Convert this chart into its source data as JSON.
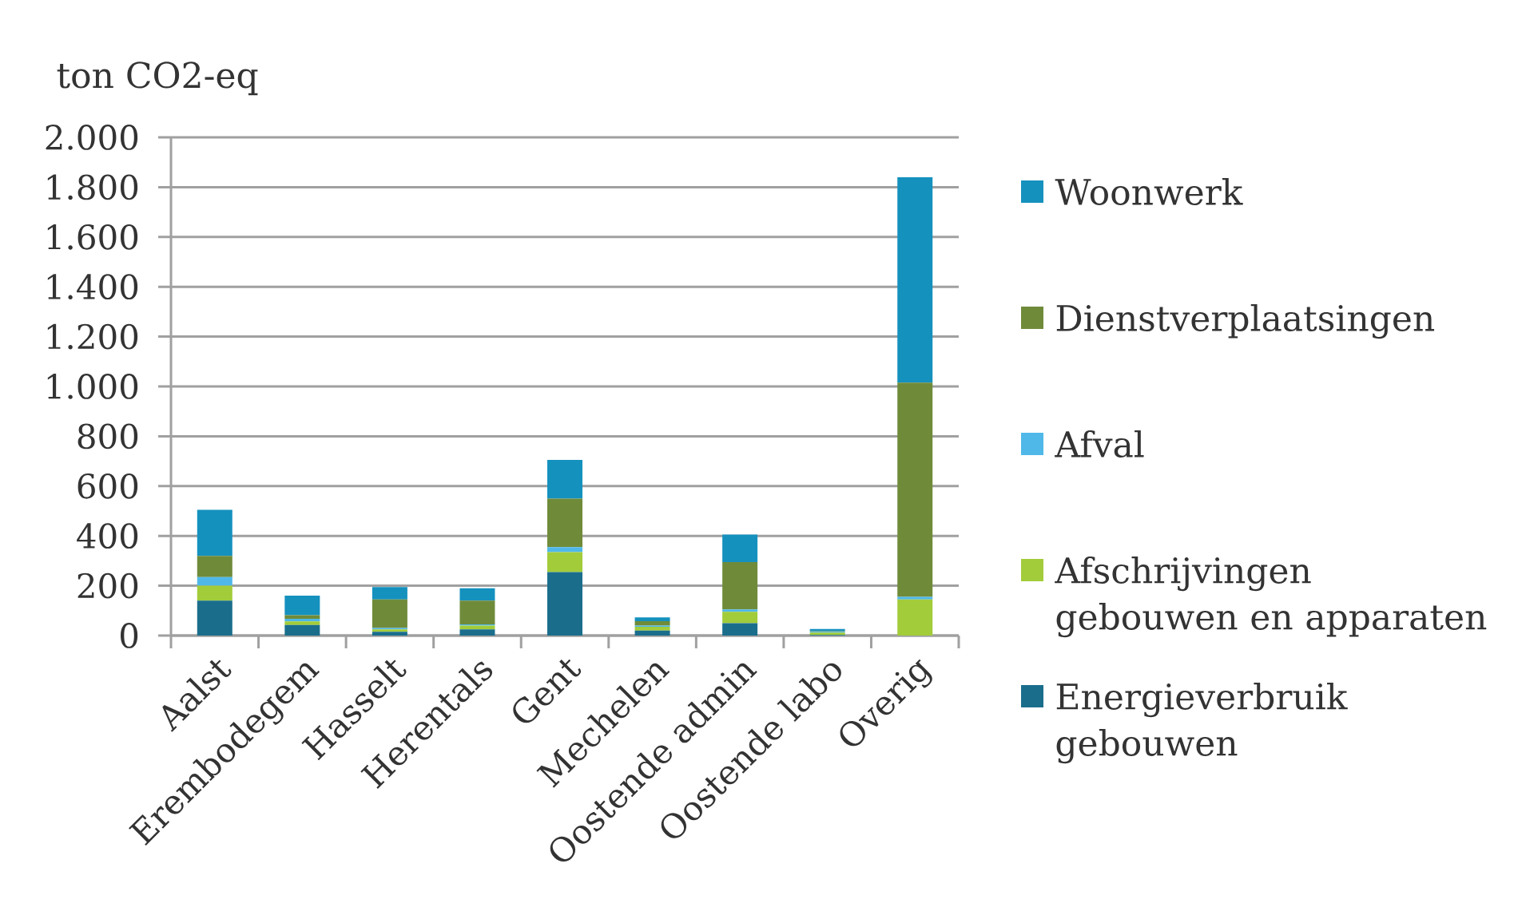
{
  "chart_data": {
    "type": "bar",
    "stacked": true,
    "ylabel": "ton CO2-eq",
    "categories": [
      "Aalst",
      "Erembodegem",
      "Hasselt",
      "Herentals",
      "Gent",
      "Mechelen",
      "Oostende admin",
      "Oostende labo",
      "Overig"
    ],
    "series": [
      {
        "name": "Energieverbruik gebouwen",
        "color": "#1a6e8c",
        "values": [
          140,
          42,
          15,
          25,
          255,
          20,
          50,
          2,
          0
        ]
      },
      {
        "name": "Afschrijvingen gebouwen en apparaten",
        "color": "#a2cc3a",
        "values": [
          60,
          15,
          10,
          15,
          80,
          15,
          45,
          10,
          145
        ]
      },
      {
        "name": "Afval",
        "color": "#4fb8e8",
        "values": [
          35,
          10,
          5,
          5,
          20,
          5,
          10,
          5,
          10
        ]
      },
      {
        "name": "Dienstverplaatsingen",
        "color": "#6f8b3a",
        "values": [
          85,
          15,
          115,
          95,
          195,
          18,
          190,
          2,
          860
        ]
      },
      {
        "name": "Woonwerk",
        "color": "#1591be",
        "values": [
          185,
          78,
          50,
          50,
          155,
          15,
          110,
          7,
          825
        ]
      }
    ],
    "ylim": [
      0,
      2000
    ],
    "yticks": [
      0,
      200,
      400,
      600,
      800,
      {
        "value": 1000,
        "label": "1.000"
      },
      {
        "value": 1200,
        "label": "1.200"
      },
      {
        "value": 1400,
        "label": "1.400"
      },
      {
        "value": 1600,
        "label": "1.600"
      },
      {
        "value": 1800,
        "label": "1.800"
      },
      {
        "value": 2000,
        "label": "2.000"
      }
    ],
    "grid": "y",
    "legend": "right"
  }
}
